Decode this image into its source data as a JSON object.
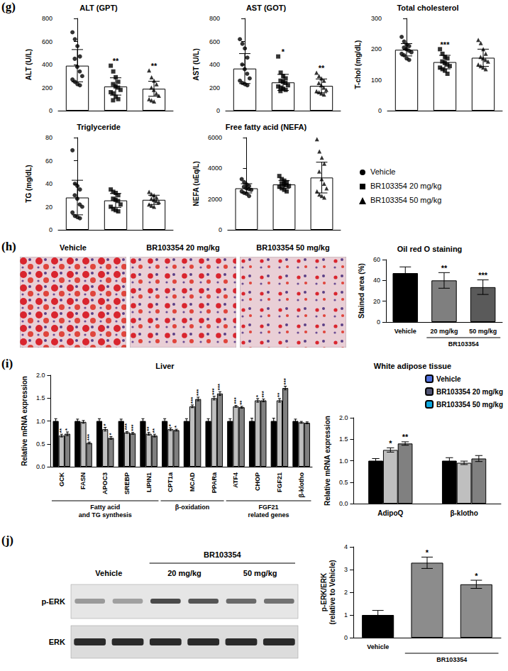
{
  "figure": {
    "panel_labels": [
      "(g)",
      "(h)",
      "(i)",
      "(j)"
    ],
    "legend_g": [
      {
        "name": "Vehicle",
        "marker": "circle"
      },
      {
        "name": "BR103354 20 mg/kg",
        "marker": "square"
      },
      {
        "name": "BR103354 50 mg/kg",
        "marker": "triangle"
      }
    ],
    "stain_images": [
      "Vehicle",
      "BR103354 20 mg/kg",
      "BR103354 50 mg/kg"
    ],
    "blot": {
      "group_label": "BR103354",
      "lanes": [
        "Vehicle",
        "20 mg/kg",
        "50 mg/kg"
      ],
      "rows": [
        "p-ERK",
        "ERK"
      ]
    }
  },
  "chart_data": [
    {
      "type": "bar",
      "title": "ALT (GPT)",
      "y_label": "ALT (U/L)",
      "categories": [
        null,
        null,
        null
      ],
      "values": [
        390,
        210,
        190
      ],
      "errors": [
        140,
        75,
        65
      ],
      "points": [
        [
          680,
          620,
          560,
          470,
          450,
          380,
          340,
          300,
          270,
          250,
          230,
          220
        ],
        [
          390,
          340,
          290,
          250,
          230,
          210,
          200,
          180,
          160,
          150,
          120,
          100,
          90
        ],
        [
          350,
          290,
          260,
          230,
          200,
          180,
          150,
          130,
          100,
          90,
          80
        ]
      ],
      "significance": [
        null,
        "**",
        "**"
      ],
      "color": "#ffffff",
      "ylim": [
        0,
        800
      ],
      "yticks": [
        0,
        200,
        400,
        600,
        800
      ]
    },
    {
      "type": "bar",
      "title": "AST (GOT)",
      "y_label": "AST (U/L)",
      "categories": [
        null,
        null,
        null
      ],
      "values": [
        365,
        245,
        215
      ],
      "errors": [
        130,
        70,
        60
      ],
      "points": [
        [
          620,
          580,
          540,
          460,
          400,
          360,
          320,
          280,
          260,
          240,
          230,
          220
        ],
        [
          470,
          330,
          300,
          280,
          260,
          250,
          240,
          220,
          210,
          200,
          190,
          180,
          170
        ],
        [
          330,
          300,
          280,
          260,
          240,
          220,
          200,
          180,
          170,
          160,
          150,
          140
        ]
      ],
      "significance": [
        null,
        "*",
        "**"
      ],
      "color": "#ffffff",
      "ylim": [
        0,
        800
      ],
      "yticks": [
        0,
        200,
        400,
        600,
        800
      ]
    },
    {
      "type": "bar",
      "title": "Total cholesterol",
      "y_label": "T-chol (mg/dL)",
      "categories": [
        null,
        null,
        null
      ],
      "values": [
        198,
        158,
        172
      ],
      "errors": [
        20,
        22,
        28
      ],
      "points": [
        [
          240,
          225,
          215,
          210,
          205,
          200,
          195,
          190,
          185,
          180,
          170,
          165
        ],
        [
          200,
          185,
          175,
          170,
          160,
          155,
          150,
          145,
          140,
          135,
          130,
          120
        ],
        [
          230,
          220,
          200,
          185,
          175,
          170,
          165,
          160,
          150,
          145,
          140,
          135
        ]
      ],
      "significance": [
        null,
        "***",
        null
      ],
      "color": "#ffffff",
      "ylim": [
        0,
        300
      ],
      "yticks": [
        0,
        100,
        200,
        300
      ]
    },
    {
      "type": "bar",
      "title": "Triglyceride",
      "y_label": "TG (mg/dL)",
      "categories": [
        null,
        null,
        null
      ],
      "values": [
        28,
        25.5,
        26
      ],
      "errors": [
        15,
        6,
        4
      ],
      "points": [
        [
          69,
          40,
          38,
          35,
          30,
          27,
          22,
          20,
          15,
          12,
          11,
          10
        ],
        [
          35,
          33,
          32,
          30,
          27,
          26,
          25,
          22,
          20,
          18,
          17,
          16
        ],
        [
          33,
          31,
          30,
          28,
          27,
          26,
          25,
          24,
          22,
          21,
          20
        ]
      ],
      "significance": [
        null,
        null,
        null
      ],
      "color": "#ffffff",
      "ylim": [
        0,
        80
      ],
      "yticks": [
        0,
        20,
        40,
        60,
        80
      ]
    },
    {
      "type": "bar",
      "title": "Free fatty acid (NEFA)",
      "y_label": "NEFA (uEq/L)",
      "categories": [
        null,
        null,
        null
      ],
      "values": [
        2700,
        2950,
        3400
      ],
      "errors": [
        300,
        250,
        1000
      ],
      "points": [
        [
          3300,
          3100,
          2950,
          2850,
          2800,
          2700,
          2650,
          2600,
          2500,
          2400,
          2350,
          2200
        ],
        [
          3500,
          3300,
          3200,
          3100,
          3000,
          2950,
          2900,
          2850,
          2800,
          2700,
          2600,
          2500
        ],
        [
          5900,
          5100,
          4700,
          4300,
          3800,
          3300,
          3000,
          2700,
          2500,
          2300,
          2200,
          2100
        ]
      ],
      "significance": [
        null,
        null,
        null
      ],
      "color": "#ffffff",
      "ylim": [
        0,
        6000
      ],
      "yticks": [
        0,
        2000,
        4000,
        6000
      ]
    },
    {
      "type": "bar",
      "title": "Oil red O staining",
      "y_label": "Stained area (%)",
      "categories": [
        "Vehicle",
        "20 mg/kg",
        "50 mg/kg"
      ],
      "groups": [
        {
          "label": "BR103354",
          "from": 1,
          "to": 2
        }
      ],
      "values": [
        47,
        40,
        33.5
      ],
      "errors": [
        6,
        7.5,
        7
      ],
      "significance": [
        null,
        "**",
        "***"
      ],
      "colors": [
        "#000000",
        "#7f7f7f",
        "#5a5a5a"
      ],
      "ylim": [
        0,
        60
      ],
      "yticks": [
        0,
        20,
        40,
        60
      ]
    },
    {
      "type": "bar",
      "title": "Liver",
      "y_label": "Relative mRNA expression",
      "categories": [
        "GCK",
        "FASN",
        "APOC3",
        "SREBP",
        "LIPIN1",
        "CPT1a",
        "MCAD",
        "PPARa",
        "ATF4",
        "CHOP",
        "FGF21",
        "β-klotho"
      ],
      "groups": [
        {
          "label": "Fatty acid\nand TG synthesis",
          "from": 0,
          "to": 4
        },
        {
          "label": "β-oxidation",
          "from": 5,
          "to": 7
        },
        {
          "label": "FGF21\nrelated genes",
          "from": 8,
          "to": 11
        }
      ],
      "series": [
        {
          "color": "#000000",
          "values": [
            1,
            1,
            1,
            1,
            1,
            1,
            1,
            1,
            1,
            1,
            1,
            1
          ],
          "errors": [
            0.05,
            0.04,
            0.05,
            0.04,
            0.05,
            0.05,
            0.05,
            0.05,
            0.05,
            0.06,
            0.06,
            0.04
          ],
          "significance": [
            null,
            null,
            null,
            null,
            null,
            null,
            null,
            null,
            null,
            null,
            null,
            null
          ]
        },
        {
          "color": "#bfbfbf",
          "values": [
            0.68,
            0.98,
            0.82,
            0.75,
            0.72,
            0.82,
            1.32,
            1.5,
            1.32,
            1.45,
            1.45,
            0.97
          ],
          "errors": [
            0.03,
            0.03,
            0.04,
            0.02,
            0.03,
            0.03,
            0.03,
            0.04,
            0.02,
            0.04,
            0.04,
            0.02
          ],
          "significance": [
            "**",
            null,
            "*",
            "***",
            "**",
            "*",
            "***",
            "***",
            "***",
            "*",
            "**",
            null
          ]
        },
        {
          "color": "#808080",
          "values": [
            0.72,
            0.52,
            0.63,
            0.73,
            0.68,
            0.8,
            1.48,
            1.6,
            1.3,
            1.45,
            1.72,
            0.96
          ],
          "errors": [
            0.04,
            0.02,
            0.03,
            0.02,
            0.03,
            0.02,
            0.04,
            0.04,
            0.02,
            0.03,
            0.04,
            0.02
          ],
          "significance": [
            "*",
            "***",
            "*",
            "***",
            "**",
            "*",
            "***",
            "***",
            "**",
            "***",
            "***",
            null
          ]
        }
      ],
      "ylim": [
        0,
        2
      ],
      "yticks": [
        {
          "value": 0,
          "label": "0.0"
        },
        {
          "value": 0.5,
          "label": "0.5"
        },
        {
          "value": 1,
          "label": "1.0"
        },
        {
          "value": 1.5,
          "label": "1.5"
        },
        {
          "value": 2,
          "label": "2.0"
        }
      ]
    },
    {
      "type": "bar",
      "title": "White adipose tissue",
      "y_label": "Relative mRNA expression",
      "categories": [
        "AdipoQ",
        "β-klotho"
      ],
      "legend": "top-right",
      "series": [
        {
          "name": "Vehicle",
          "color": "#000000",
          "values": [
            1,
            1
          ],
          "errors": [
            0.05,
            0.07
          ],
          "significance": [
            null,
            null
          ]
        },
        {
          "name": "BR103354 20 mg/kg",
          "color": "#bfbfbf",
          "values": [
            1.25,
            0.95
          ],
          "errors": [
            0.05,
            0.04
          ],
          "significance": [
            "*",
            null
          ]
        },
        {
          "name": "BR103354 50 mg/kg",
          "color": "#808080",
          "values": [
            1.4,
            1.05
          ],
          "errors": [
            0.04,
            0.07
          ],
          "significance": [
            "**",
            null
          ]
        }
      ],
      "ylim": [
        0,
        2
      ],
      "yticks": [
        {
          "value": 0,
          "label": "0.0"
        },
        {
          "value": 0.5,
          "label": "0.5"
        },
        {
          "value": 1,
          "label": "1.0"
        },
        {
          "value": 1.5,
          "label": "1.5"
        },
        {
          "value": 2,
          "label": "2.0"
        }
      ]
    },
    {
      "type": "bar",
      "y_label": "p-ERK/ERK\n(relative to Vehicle)",
      "categories": [
        "Vehicle",
        null,
        null
      ],
      "groups": [
        {
          "label": "BR103354",
          "from": 1,
          "to": 2
        }
      ],
      "values": [
        1,
        3.3,
        2.35
      ],
      "errors": [
        0.2,
        0.25,
        0.18
      ],
      "significance": [
        null,
        "*",
        "*"
      ],
      "colors": [
        "#000000",
        "#8c8c8c",
        "#8c8c8c"
      ],
      "ylim": [
        0,
        4
      ],
      "yticks": [
        0,
        1,
        2,
        3,
        4
      ]
    }
  ]
}
